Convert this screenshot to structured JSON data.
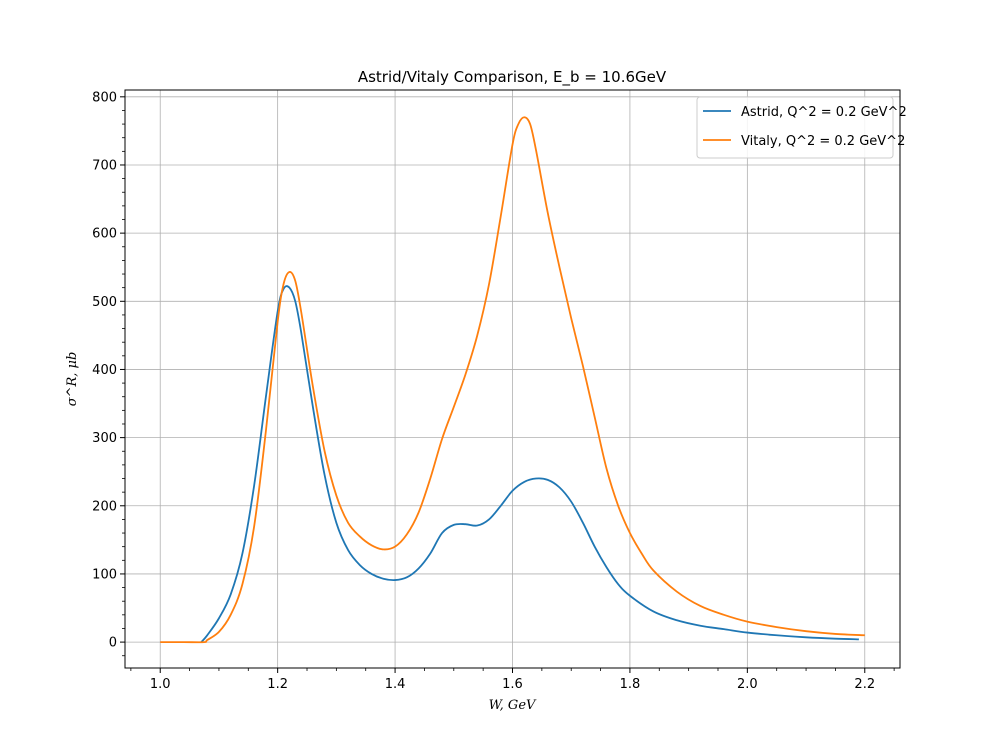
{
  "chart_data": {
    "type": "line",
    "title": "Astrid/Vitaly Comparison, E_b = 10.6GeV",
    "xlabel": "W, GeV",
    "ylabel": "σ^R, μb",
    "xlim": [
      0.94,
      2.26
    ],
    "ylim": [
      -38,
      810
    ],
    "x_ticks": [
      1.0,
      1.2,
      1.4,
      1.6,
      1.8,
      2.0,
      2.2
    ],
    "y_ticks": [
      0,
      100,
      200,
      300,
      400,
      500,
      600,
      700,
      800
    ],
    "grid": true,
    "legend_position": "top-right",
    "series": [
      {
        "name": "Astrid, Q^2 = 0.2 GeV^2",
        "color": "#1f77b4",
        "x": [
          1.07,
          1.08,
          1.1,
          1.12,
          1.14,
          1.16,
          1.18,
          1.2,
          1.21,
          1.22,
          1.23,
          1.24,
          1.26,
          1.28,
          1.3,
          1.32,
          1.34,
          1.36,
          1.38,
          1.4,
          1.42,
          1.44,
          1.46,
          1.48,
          1.5,
          1.52,
          1.54,
          1.56,
          1.58,
          1.6,
          1.62,
          1.64,
          1.66,
          1.68,
          1.7,
          1.72,
          1.74,
          1.76,
          1.78,
          1.8,
          1.84,
          1.88,
          1.92,
          1.96,
          2.0,
          2.05,
          2.1,
          2.15,
          2.19
        ],
        "y": [
          0,
          10,
          35,
          70,
          130,
          230,
          360,
          485,
          518,
          520,
          500,
          455,
          345,
          245,
          175,
          135,
          113,
          100,
          93,
          91,
          95,
          108,
          130,
          160,
          172,
          173,
          171,
          180,
          200,
          222,
          235,
          240,
          238,
          227,
          206,
          175,
          140,
          110,
          85,
          68,
          45,
          32,
          24,
          19,
          14,
          10,
          7,
          5,
          4
        ]
      },
      {
        "name": "Vitaly, Q^2 = 0.2 GeV^2",
        "color": "#ff7f0e",
        "x": [
          1.0,
          1.04,
          1.075,
          1.08,
          1.1,
          1.12,
          1.14,
          1.16,
          1.18,
          1.2,
          1.21,
          1.22,
          1.23,
          1.24,
          1.26,
          1.28,
          1.3,
          1.32,
          1.34,
          1.36,
          1.38,
          1.4,
          1.42,
          1.44,
          1.46,
          1.48,
          1.5,
          1.52,
          1.54,
          1.56,
          1.58,
          1.6,
          1.61,
          1.62,
          1.63,
          1.64,
          1.66,
          1.68,
          1.7,
          1.72,
          1.74,
          1.76,
          1.78,
          1.8,
          1.82,
          1.84,
          1.88,
          1.92,
          1.96,
          2.0,
          2.05,
          2.1,
          2.15,
          2.2
        ],
        "y": [
          0,
          0,
          0,
          3,
          15,
          40,
          85,
          170,
          310,
          470,
          525,
          543,
          530,
          485,
          375,
          280,
          215,
          175,
          155,
          142,
          136,
          140,
          158,
          190,
          240,
          298,
          345,
          393,
          450,
          525,
          625,
          730,
          760,
          770,
          760,
          722,
          630,
          550,
          475,
          405,
          330,
          255,
          200,
          160,
          130,
          105,
          74,
          53,
          40,
          30,
          22,
          16,
          12,
          10
        ]
      }
    ]
  }
}
